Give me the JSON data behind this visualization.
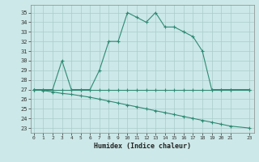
{
  "xlabel": "Humidex (Indice chaleur)",
  "x": [
    0,
    1,
    2,
    3,
    4,
    5,
    6,
    7,
    8,
    9,
    10,
    11,
    12,
    13,
    14,
    15,
    16,
    17,
    18,
    19,
    20,
    21,
    23
  ],
  "y_main": [
    27,
    27,
    27,
    30,
    27,
    27,
    27,
    29,
    32,
    32,
    35,
    34.5,
    34,
    35,
    33.5,
    33.5,
    33,
    32.5,
    31,
    27,
    27,
    27,
    27
  ],
  "y_flat": [
    27,
    27,
    27,
    27,
    27,
    27,
    27,
    27,
    27,
    27,
    27,
    27,
    27,
    27,
    27,
    27,
    27,
    27,
    27,
    27,
    27,
    27,
    27
  ],
  "y_decline": [
    27,
    26.9,
    26.75,
    26.6,
    26.5,
    26.35,
    26.2,
    26.0,
    25.8,
    25.6,
    25.4,
    25.2,
    25.0,
    24.8,
    24.6,
    24.4,
    24.2,
    24.0,
    23.8,
    23.6,
    23.4,
    23.2,
    23.0
  ],
  "line_color": "#2e8b74",
  "background_color": "#cce8e8",
  "grid_color": "#aacccc",
  "ylim": [
    22.5,
    35.8
  ],
  "yticks": [
    23,
    24,
    25,
    26,
    27,
    28,
    29,
    30,
    31,
    32,
    33,
    34,
    35
  ],
  "xticks": [
    0,
    1,
    2,
    3,
    4,
    5,
    6,
    7,
    8,
    9,
    10,
    11,
    12,
    13,
    14,
    15,
    16,
    17,
    18,
    19,
    20,
    21,
    23
  ],
  "xlim": [
    -0.3,
    23.5
  ]
}
